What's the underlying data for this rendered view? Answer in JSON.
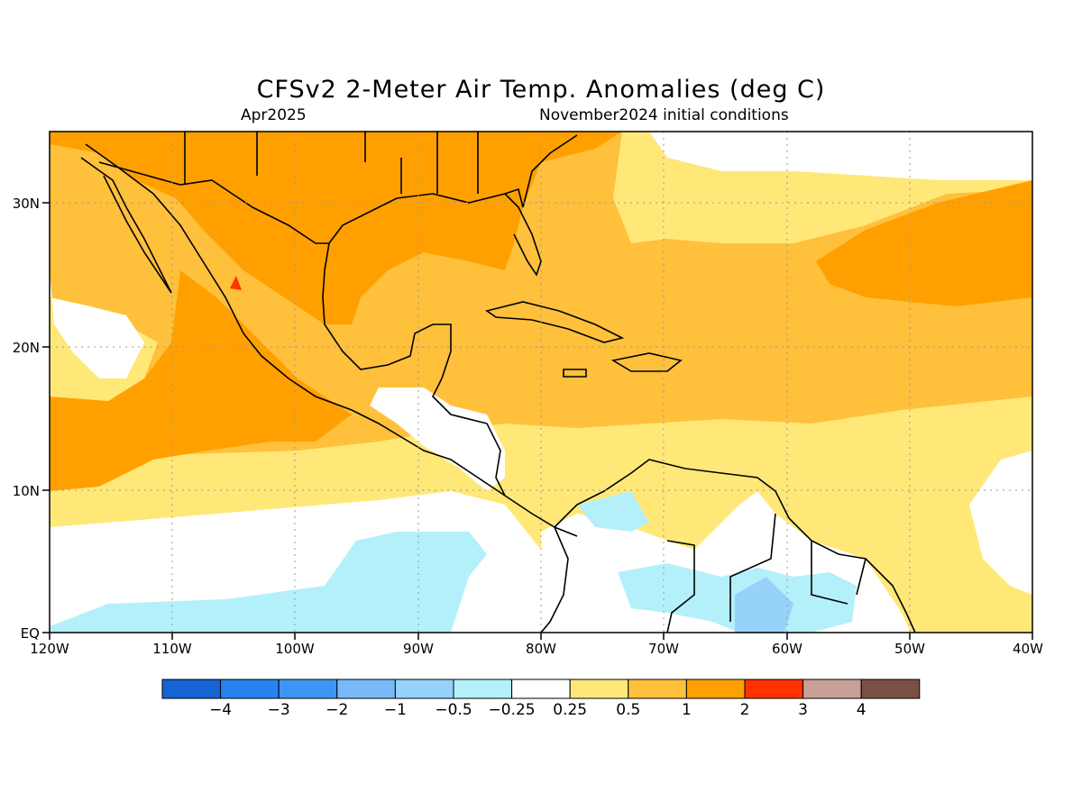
{
  "header": {
    "title": "CFSv2 2-Meter Air Temp. Anomalies (deg C)",
    "valid_month": "Apr2025",
    "initial_conditions": "November2024 initial conditions"
  },
  "map": {
    "lat_labels": [
      "30N",
      "20N",
      "10N",
      "EQ"
    ],
    "lon_labels": [
      "120W",
      "110W",
      "100W",
      "90W",
      "80W",
      "70W",
      "60W",
      "50W",
      "40W"
    ],
    "land_outline_color": "#000000",
    "grid_style": "dotted"
  },
  "colorbar": {
    "colors": [
      "#1464d2",
      "#2882f0",
      "#3c96f5",
      "#78b9fa",
      "#96d2fa",
      "#b4f0fa",
      "#ffffff",
      "#ffe878",
      "#ffc03c",
      "#ffa000",
      "#ff3200",
      "#c8a096",
      "#7a5044"
    ],
    "labels": [
      "−4",
      "−3",
      "−2",
      "−1",
      "−0.5",
      "−0.25",
      "0.25",
      "0.5",
      "1",
      "2",
      "3",
      "4"
    ]
  }
}
